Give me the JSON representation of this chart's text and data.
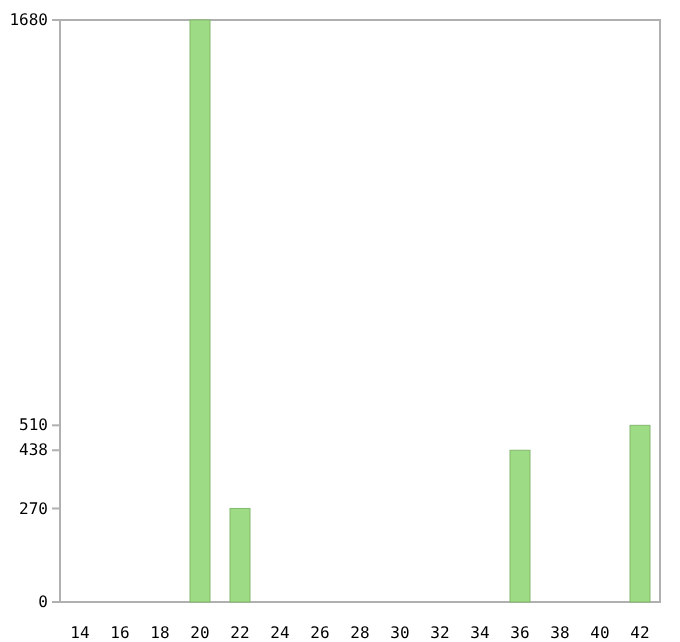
{
  "chart_data": {
    "type": "bar",
    "categories": [
      "14",
      "16",
      "18",
      "20",
      "22",
      "24",
      "26",
      "28",
      "30",
      "32",
      "34",
      "36",
      "38",
      "40",
      "42"
    ],
    "values": [
      0,
      0,
      0,
      1680,
      270,
      0,
      0,
      0,
      0,
      0,
      0,
      438,
      0,
      0,
      510
    ],
    "color": "#9ddc84",
    "ylim": [
      0,
      1680
    ],
    "yticks": [
      0,
      270,
      438,
      510,
      1680
    ],
    "grid": false
  }
}
